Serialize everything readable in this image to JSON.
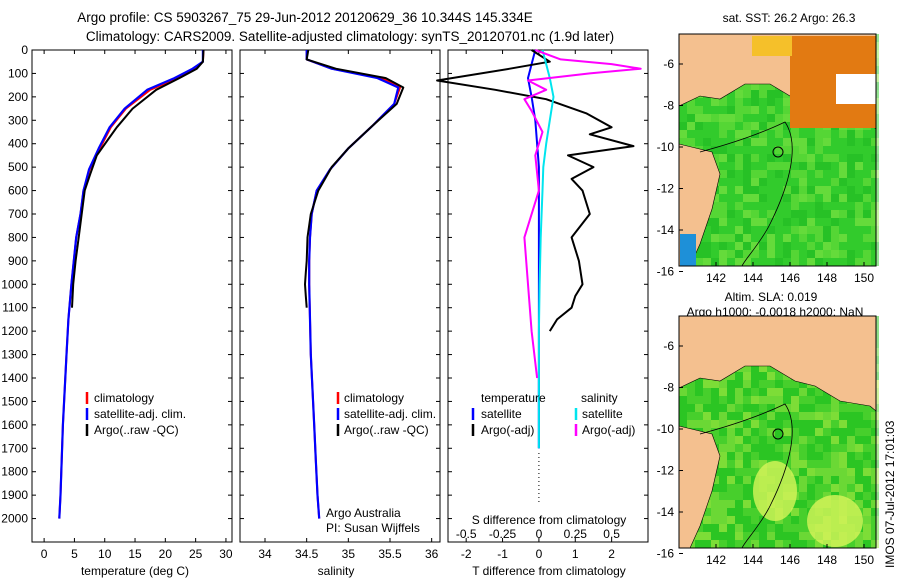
{
  "header": {
    "title_line1": "Argo profile: CS 5903267_75 29-Jun-2012 20120629_36 10.344S 145.334E",
    "title_line2": "Climatology: CARS2009. Satellite-adjusted climatology: synTS_20120701.nc (1.9d later)"
  },
  "legends": {
    "panel1": [
      "climatology",
      "satellite-adj. clim.",
      "Argo(..raw -QC)"
    ],
    "panel2": [
      "climatology",
      "satellite-adj. clim.",
      "Argo(..raw -QC)"
    ],
    "panel3_left_header": "temperature",
    "panel3_right_header": "salinity",
    "panel3_left": [
      "satellite",
      "Argo(-adj)"
    ],
    "panel3_right": [
      "satellite",
      "Argo(-adj)"
    ]
  },
  "credits": {
    "line1": "Argo Australia",
    "line2": "PI: Susan Wijffels"
  },
  "maps": {
    "top_title": "sat. SST: 26.2  Argo: 26.3",
    "bottom_title_line1": "Altim. SLA: 0.019",
    "bottom_title_line2": "Argo h1000: -0.0018 h2000: NaN",
    "side_stamp": "IMOS 07-Jul-2012 17:01:03",
    "lon_ticks": [
      "142",
      "144",
      "146",
      "148",
      "150"
    ],
    "lat_ticks": [
      "-6",
      "-8",
      "-10",
      "-12",
      "-14",
      "-16"
    ]
  },
  "colors": {
    "climatology": "#ff0000",
    "satellite": "#0000ff",
    "argo": "#000000",
    "sal_satellite": "#00e5ee",
    "sal_argo": "#ff00ff",
    "land": "#f4c08f",
    "ocean": "#22c41c"
  },
  "chart_data": [
    {
      "type": "line",
      "xlabel": "temperature (deg C)",
      "ylabel": "",
      "xlim": [
        -2,
        31
      ],
      "ylim": [
        2100,
        0
      ],
      "xticks": [
        0,
        5,
        10,
        15,
        20,
        25,
        30
      ],
      "yticks": [
        0,
        100,
        200,
        300,
        400,
        500,
        600,
        700,
        800,
        900,
        1000,
        1100,
        1200,
        1300,
        1400,
        1500,
        1600,
        1700,
        1800,
        1900,
        2000
      ],
      "series": [
        {
          "name": "climatology",
          "x": [
            26.3,
            26.2,
            25.0,
            22.0,
            17.5,
            13.5,
            11.0,
            9.2,
            7.5,
            6.5,
            6.0,
            5.3,
            4.9,
            4.5,
            4.0,
            3.7,
            3.4,
            3.1,
            2.9,
            2.7,
            2.5
          ],
          "y": [
            0,
            50,
            80,
            120,
            170,
            250,
            330,
            420,
            510,
            600,
            700,
            800,
            900,
            1000,
            1150,
            1300,
            1450,
            1600,
            1750,
            1900,
            2000
          ]
        },
        {
          "name": "satellite-adj. clim.",
          "x": [
            26.2,
            26.2,
            24.5,
            21.5,
            17.0,
            13.3,
            10.8,
            9.0,
            7.4,
            6.5,
            6.0,
            5.3,
            4.9,
            4.5,
            4.0,
            3.7,
            3.4,
            3.1,
            2.9,
            2.7,
            2.5
          ],
          "y": [
            0,
            50,
            80,
            120,
            170,
            250,
            330,
            420,
            510,
            600,
            700,
            800,
            900,
            1000,
            1150,
            1300,
            1450,
            1600,
            1750,
            1900,
            2000
          ]
        },
        {
          "name": "Argo(..raw -QC)",
          "x": [
            26.3,
            26.2,
            25.2,
            22.3,
            18.5,
            14.6,
            12.0,
            10.6,
            8.7,
            7.6,
            6.7,
            6.2,
            5.7,
            5.2,
            4.8,
            4.6
          ],
          "y": [
            0,
            50,
            80,
            120,
            170,
            250,
            330,
            380,
            450,
            530,
            600,
            700,
            800,
            900,
            1000,
            1100
          ]
        }
      ]
    },
    {
      "type": "line",
      "xlabel": "salinity",
      "ylabel": "",
      "xlim": [
        33.7,
        36.1
      ],
      "ylim": [
        2100,
        0
      ],
      "xticks": [
        34,
        34.5,
        35,
        35.5,
        36
      ],
      "yticks": [
        0,
        100,
        200,
        300,
        400,
        500,
        600,
        700,
        800,
        900,
        1000,
        1100,
        1200,
        1300,
        1400,
        1500,
        1600,
        1700,
        1800,
        1900,
        2000
      ],
      "series": [
        {
          "name": "climatology",
          "x": [
            34.5,
            34.5,
            34.8,
            35.4,
            35.62,
            35.55,
            35.3,
            35.0,
            34.78,
            34.62,
            34.56,
            34.54,
            34.53,
            34.53,
            34.54,
            34.55,
            34.57,
            34.59,
            34.61,
            34.63,
            34.65
          ],
          "y": [
            0,
            40,
            80,
            120,
            160,
            230,
            320,
            420,
            510,
            600,
            700,
            800,
            900,
            1000,
            1150,
            1300,
            1450,
            1600,
            1750,
            1900,
            2000
          ]
        },
        {
          "name": "satellite-adj. clim.",
          "x": [
            34.5,
            34.5,
            34.8,
            35.35,
            35.6,
            35.55,
            35.3,
            35.0,
            34.78,
            34.62,
            34.56,
            34.54,
            34.53,
            34.53,
            34.54,
            34.55,
            34.57,
            34.59,
            34.61,
            34.63,
            34.65
          ],
          "y": [
            0,
            40,
            80,
            120,
            160,
            230,
            320,
            420,
            510,
            600,
            700,
            800,
            900,
            1000,
            1150,
            1300,
            1450,
            1600,
            1750,
            1900,
            2000
          ]
        },
        {
          "name": "Argo(..raw -QC)",
          "x": [
            34.52,
            34.5,
            34.85,
            35.45,
            35.66,
            35.58,
            35.3,
            35.0,
            34.8,
            34.64,
            34.55,
            34.51,
            34.5,
            34.49,
            34.48,
            34.49,
            34.5
          ],
          "y": [
            0,
            40,
            80,
            120,
            160,
            230,
            320,
            420,
            500,
            600,
            700,
            800,
            900,
            950,
            1000,
            1050,
            1100
          ]
        }
      ]
    },
    {
      "type": "line",
      "xlabel": "T difference from climatology",
      "x2label": "S difference from climatology",
      "ylabel": "",
      "xlim": [
        -2.5,
        3
      ],
      "x2lim": [
        -0.625,
        0.75
      ],
      "ylim": [
        2100,
        0
      ],
      "xticks": [
        -2,
        -1,
        0,
        1,
        2
      ],
      "x2ticks": [
        "-0.5",
        "-0.25",
        "0",
        "0.25",
        "0.5"
      ],
      "yticks": [
        0,
        100,
        200,
        300,
        400,
        500,
        600,
        700,
        800,
        900,
        1000,
        1100,
        1200,
        1300,
        1400,
        1500,
        1600,
        1700,
        1800,
        1900,
        2000
      ],
      "series": [
        {
          "name": "temperature satellite",
          "x": [
            -0.1,
            -0.2,
            -0.3,
            -0.2,
            -0.1,
            -0.05,
            0,
            0,
            0,
            0,
            0,
            0,
            0
          ],
          "y": [
            0,
            60,
            120,
            200,
            300,
            400,
            500,
            600,
            800,
            1000,
            1200,
            1400,
            1700
          ]
        },
        {
          "name": "temperature Argo(-adj)",
          "x": [
            -0.2,
            0.3,
            -0.8,
            -2.8,
            -1.2,
            0.2,
            1.3,
            2.0,
            1.4,
            2.6,
            0.8,
            1.5,
            0.9,
            1.2,
            1.4,
            0.9,
            1.1,
            1.2,
            1.0,
            0.9,
            0.5,
            0.3
          ],
          "y": [
            0,
            50,
            80,
            130,
            170,
            210,
            270,
            330,
            360,
            410,
            450,
            500,
            550,
            600,
            700,
            800,
            900,
            1000,
            1050,
            1100,
            1150,
            1200
          ]
        },
        {
          "name": "salinity satellite",
          "x": [
            0.1,
            0.2,
            0.3,
            0.4,
            0.3,
            0.2,
            0.12,
            0.1,
            0.05,
            0.02,
            0,
            0,
            0
          ],
          "y": [
            0,
            60,
            120,
            200,
            300,
            400,
            500,
            600,
            800,
            1000,
            1200,
            1400,
            1700
          ]
        },
        {
          "name": "salinity Argo(-adj)",
          "x": [
            -0.1,
            0.6,
            2.0,
            2.8,
            1.4,
            -0.3,
            0.2,
            -0.4,
            -0.2,
            0.1,
            -0.1,
            0,
            -0.4,
            -0.3,
            -0.2,
            -0.05
          ],
          "y": [
            0,
            40,
            60,
            80,
            100,
            130,
            170,
            210,
            260,
            350,
            450,
            600,
            800,
            1000,
            1200,
            1400
          ]
        }
      ]
    }
  ]
}
